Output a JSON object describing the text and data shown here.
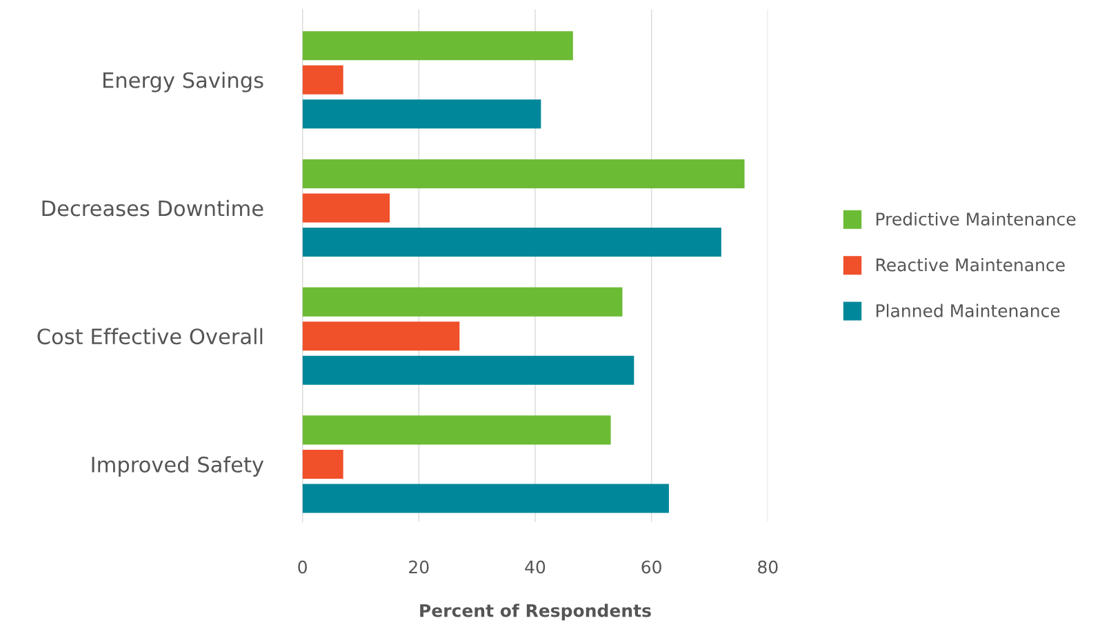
{
  "chart_data": {
    "type": "bar",
    "orientation": "horizontal",
    "xlabel": "Percent of Respondents",
    "categories": [
      "Energy Savings",
      "Decreases Downtime",
      "Cost Effective Overall",
      "Improved Safety"
    ],
    "series": [
      {
        "name": "Predictive Maintenance",
        "color": "#6cbb35",
        "values": [
          46.5,
          76,
          55,
          53
        ]
      },
      {
        "name": "Reactive Maintenance",
        "color": "#f0502a",
        "values": [
          7,
          15,
          27,
          7
        ]
      },
      {
        "name": "Planned Maintenance",
        "color": "#00879a",
        "values": [
          41,
          72,
          57,
          63
        ]
      }
    ],
    "xlim": [
      0,
      80
    ],
    "xticks": [
      0,
      20,
      40,
      60,
      80
    ],
    "grid": "x",
    "legend": "right"
  }
}
